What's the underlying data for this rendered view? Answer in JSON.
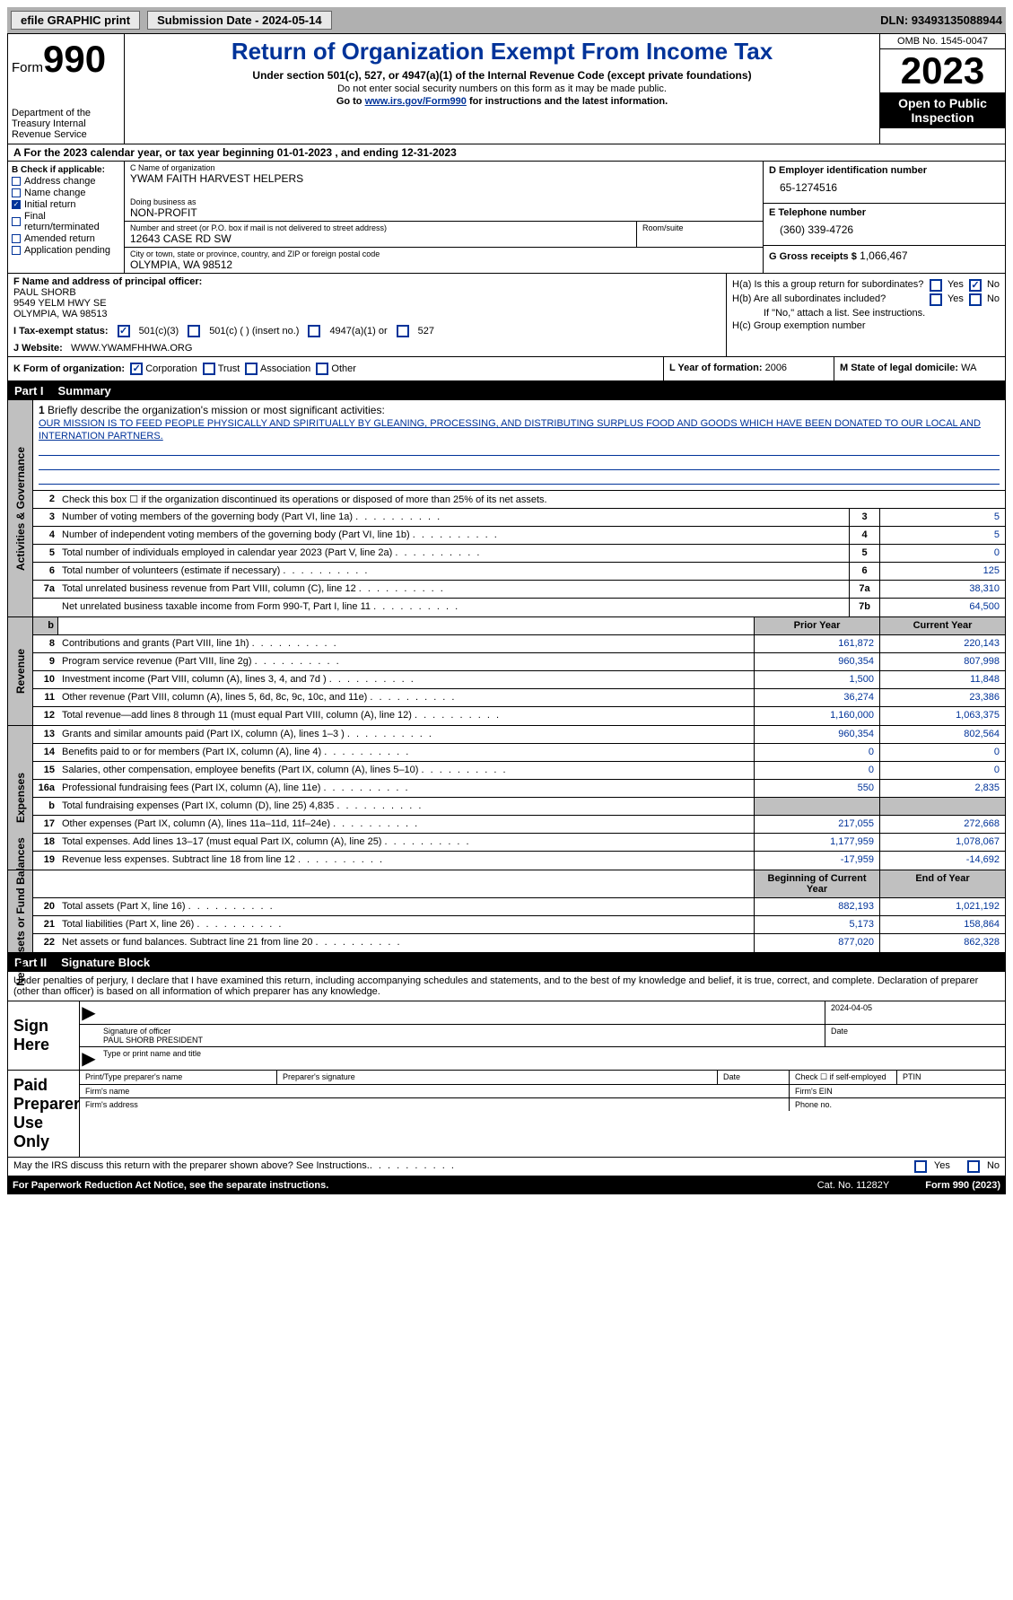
{
  "topbar": {
    "efile": "efile GRAPHIC print",
    "submission": "Submission Date - 2024-05-14",
    "dln": "DLN: 93493135088944"
  },
  "header": {
    "form_label": "Form",
    "form_num": "990",
    "dept": "Department of the Treasury Internal Revenue Service",
    "title": "Return of Organization Exempt From Income Tax",
    "sub1": "Under section 501(c), 527, or 4947(a)(1) of the Internal Revenue Code (except private foundations)",
    "sub2": "Do not enter social security numbers on this form as it may be made public.",
    "sub3_pre": "Go to ",
    "sub3_link": "www.irs.gov/Form990",
    "sub3_post": " for instructions and the latest information.",
    "omb": "OMB No. 1545-0047",
    "year": "2023",
    "open": "Open to Public Inspection"
  },
  "row_a": "A For the 2023 calendar year, or tax year beginning 01-01-2023   , and ending 12-31-2023",
  "box_b": {
    "label": "B Check if applicable:",
    "items": [
      {
        "label": "Address change",
        "checked": false
      },
      {
        "label": "Name change",
        "checked": false
      },
      {
        "label": "Initial return",
        "checked": true
      },
      {
        "label": "Final return/terminated",
        "checked": false
      },
      {
        "label": "Amended return",
        "checked": false
      },
      {
        "label": "Application pending",
        "checked": false
      }
    ]
  },
  "box_c": {
    "name_label": "C Name of organization",
    "name": "YWAM FAITH HARVEST HELPERS",
    "dba_label": "Doing business as",
    "dba": "NON-PROFIT",
    "addr_label": "Number and street (or P.O. box if mail is not delivered to street address)",
    "room_label": "Room/suite",
    "addr": "12643 CASE RD SW",
    "city_label": "City or town, state or province, country, and ZIP or foreign postal code",
    "city": "OLYMPIA, WA  98512"
  },
  "box_d": {
    "ein_label": "D Employer identification number",
    "ein": "65-1274516",
    "phone_label": "E Telephone number",
    "phone": "(360) 339-4726",
    "gross_label": "G Gross receipts $",
    "gross": "1,066,467"
  },
  "box_f": {
    "label": "F  Name and address of principal officer:",
    "name": "PAUL SHORB",
    "addr1": "9549 YELM HWY SE",
    "addr2": "OLYMPIA, WA  98513"
  },
  "box_h": {
    "ha": "H(a)  Is this a group return for subordinates?",
    "hb": "H(b)  Are all subordinates included?",
    "hb_note": "If \"No,\" attach a list. See instructions.",
    "hc": "H(c)  Group exemption number"
  },
  "row_i": {
    "label": "I    Tax-exempt status:",
    "opt1": "501(c)(3)",
    "opt2": "501(c) (  ) (insert no.)",
    "opt3": "4947(a)(1) or",
    "opt4": "527"
  },
  "row_j": {
    "label": "J   Website:",
    "value": "WWW.YWAMFHHWA.ORG"
  },
  "row_k": {
    "label": "K Form of organization:",
    "opts": [
      "Corporation",
      "Trust",
      "Association",
      "Other"
    ],
    "checked": 0
  },
  "row_l": {
    "label": "L Year of formation:",
    "value": "2006"
  },
  "row_m": {
    "label": "M State of legal domicile:",
    "value": "WA"
  },
  "part1": {
    "num": "Part I",
    "title": "Summary"
  },
  "mission": {
    "label": "Briefly describe the organization's mission or most significant activities:",
    "text": "OUR MISSION IS TO FEED PEOPLE PHYSICALLY AND SPIRITUALLY BY GLEANING, PROCESSING, AND DISTRIBUTING SURPLUS FOOD AND GOODS WHICH HAVE BEEN DONATED TO OUR LOCAL AND INTERNATION PARTNERS."
  },
  "lines_ag": [
    {
      "n": "2",
      "d": "Check this box  ☐  if the organization discontinued its operations or disposed of more than 25% of its net assets.",
      "box": "",
      "v": ""
    },
    {
      "n": "3",
      "d": "Number of voting members of the governing body (Part VI, line 1a)",
      "box": "3",
      "v": "5"
    },
    {
      "n": "4",
      "d": "Number of independent voting members of the governing body (Part VI, line 1b)",
      "box": "4",
      "v": "5"
    },
    {
      "n": "5",
      "d": "Total number of individuals employed in calendar year 2023 (Part V, line 2a)",
      "box": "5",
      "v": "0"
    },
    {
      "n": "6",
      "d": "Total number of volunteers (estimate if necessary)",
      "box": "6",
      "v": "125"
    },
    {
      "n": "7a",
      "d": "Total unrelated business revenue from Part VIII, column (C), line 12",
      "box": "7a",
      "v": "38,310"
    },
    {
      "n": "",
      "d": "Net unrelated business taxable income from Form 990-T, Part I, line 11",
      "box": "7b",
      "v": "64,500"
    }
  ],
  "col_heads": {
    "prior": "Prior Year",
    "current": "Current Year"
  },
  "lines_rev": [
    {
      "n": "8",
      "d": "Contributions and grants (Part VIII, line 1h)",
      "p": "161,872",
      "c": "220,143"
    },
    {
      "n": "9",
      "d": "Program service revenue (Part VIII, line 2g)",
      "p": "960,354",
      "c": "807,998"
    },
    {
      "n": "10",
      "d": "Investment income (Part VIII, column (A), lines 3, 4, and 7d )",
      "p": "1,500",
      "c": "11,848"
    },
    {
      "n": "11",
      "d": "Other revenue (Part VIII, column (A), lines 5, 6d, 8c, 9c, 10c, and 11e)",
      "p": "36,274",
      "c": "23,386"
    },
    {
      "n": "12",
      "d": "Total revenue—add lines 8 through 11 (must equal Part VIII, column (A), line 12)",
      "p": "1,160,000",
      "c": "1,063,375"
    }
  ],
  "lines_exp": [
    {
      "n": "13",
      "d": "Grants and similar amounts paid (Part IX, column (A), lines 1–3 )",
      "p": "960,354",
      "c": "802,564"
    },
    {
      "n": "14",
      "d": "Benefits paid to or for members (Part IX, column (A), line 4)",
      "p": "0",
      "c": "0"
    },
    {
      "n": "15",
      "d": "Salaries, other compensation, employee benefits (Part IX, column (A), lines 5–10)",
      "p": "0",
      "c": "0"
    },
    {
      "n": "16a",
      "d": "Professional fundraising fees (Part IX, column (A), line 11e)",
      "p": "550",
      "c": "2,835"
    },
    {
      "n": "b",
      "d": "Total fundraising expenses (Part IX, column (D), line 25) 4,835",
      "p": "",
      "c": "",
      "gray": true
    },
    {
      "n": "17",
      "d": "Other expenses (Part IX, column (A), lines 11a–11d, 11f–24e)",
      "p": "217,055",
      "c": "272,668"
    },
    {
      "n": "18",
      "d": "Total expenses. Add lines 13–17 (must equal Part IX, column (A), line 25)",
      "p": "1,177,959",
      "c": "1,078,067"
    },
    {
      "n": "19",
      "d": "Revenue less expenses. Subtract line 18 from line 12",
      "p": "-17,959",
      "c": "-14,692"
    }
  ],
  "col_heads2": {
    "begin": "Beginning of Current Year",
    "end": "End of Year"
  },
  "lines_na": [
    {
      "n": "20",
      "d": "Total assets (Part X, line 16)",
      "p": "882,193",
      "c": "1,021,192"
    },
    {
      "n": "21",
      "d": "Total liabilities (Part X, line 26)",
      "p": "5,173",
      "c": "158,864"
    },
    {
      "n": "22",
      "d": "Net assets or fund balances. Subtract line 21 from line 20",
      "p": "877,020",
      "c": "862,328"
    }
  ],
  "side_labels": {
    "ag": "Activities & Governance",
    "rev": "Revenue",
    "exp": "Expenses",
    "na": "Net Assets or Fund Balances"
  },
  "part2": {
    "num": "Part II",
    "title": "Signature Block"
  },
  "perjury": "Under penalties of perjury, I declare that I have examined this return, including accompanying schedules and statements, and to the best of my knowledge and belief, it is true, correct, and complete. Declaration of preparer (other than officer) is based on all information of which preparer has any knowledge.",
  "sign_here": "Sign Here",
  "sig_date": "2024-04-05",
  "sig_officer_label": "Signature of officer",
  "sig_officer": "PAUL SHORB  PRESIDENT",
  "sig_type_label": "Type or print name and title",
  "sig_date_label": "Date",
  "paid": {
    "title": "Paid Preparer Use Only",
    "name_label": "Print/Type preparer's name",
    "sig_label": "Preparer's signature",
    "date_label": "Date",
    "check_label": "Check ☐ if self-employed",
    "ptin_label": "PTIN",
    "firm_name": "Firm's name",
    "firm_ein": "Firm's EIN",
    "firm_addr": "Firm's address",
    "phone": "Phone no."
  },
  "discuss": "May the IRS discuss this return with the preparer shown above? See Instructions.",
  "footer": {
    "paperwork": "For Paperwork Reduction Act Notice, see the separate instructions.",
    "cat": "Cat. No. 11282Y",
    "form": "Form 990 (2023)"
  },
  "yes": "Yes",
  "no": "No"
}
